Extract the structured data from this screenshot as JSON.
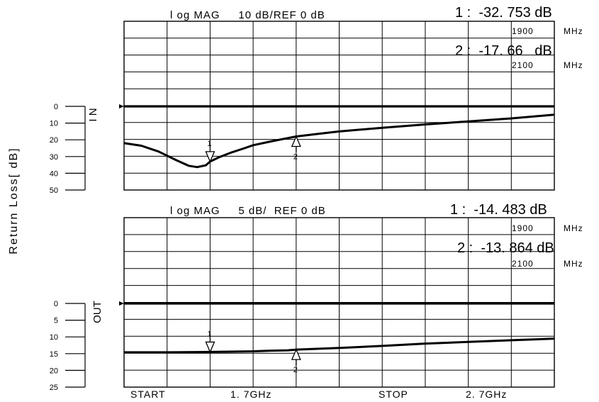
{
  "ylabel": "Return Loss[ dB]",
  "bottom_labels": {
    "start": "START",
    "start_freq": "1. 7GHz",
    "stop": "STOP",
    "stop_freq": "2. 7GHz"
  },
  "chart_data": [
    {
      "type": "line",
      "channel_label": "I N",
      "header": "l og MAG     10 dB/REF 0 dB",
      "marker1": {
        "label": "1 :  -32. 753 dB",
        "freq": "1900",
        "unit": "MHz",
        "id": "1"
      },
      "marker2": {
        "label": "2 :  -17. 66   dB",
        "freq": "2100",
        "unit": "MHz",
        "id": "2"
      },
      "xlim": [
        1.7,
        2.7
      ],
      "ylim": [
        0,
        50
      ],
      "yticks": [
        "0",
        "10",
        "20",
        "30",
        "40",
        "50"
      ],
      "grid": true,
      "x": [
        1.7,
        1.74,
        1.78,
        1.82,
        1.85,
        1.87,
        1.89,
        1.9,
        1.92,
        1.95,
        1.98,
        2.0,
        2.04,
        2.08,
        2.1,
        2.15,
        2.2,
        2.3,
        2.4,
        2.5,
        2.6,
        2.7
      ],
      "y": [
        22.0,
        23.5,
        27.0,
        32.0,
        35.5,
        36.3,
        35.2,
        33.0,
        30.5,
        27.5,
        25.0,
        23.2,
        21.0,
        19.0,
        18.0,
        16.5,
        15.0,
        12.8,
        10.8,
        9.0,
        7.2,
        5.0
      ]
    },
    {
      "type": "line",
      "channel_label": "OUT",
      "header": "l og MAG     5 dB/  REF 0 dB",
      "marker1": {
        "label": "1 :  -14. 483 dB",
        "freq": "1900",
        "unit": "MHz",
        "id": "1"
      },
      "marker2": {
        "label": "2 :  -13. 864 dB",
        "freq": "2100",
        "unit": "MHz",
        "id": "2"
      },
      "xlim": [
        1.7,
        2.7
      ],
      "ylim": [
        0,
        25
      ],
      "yticks": [
        "0",
        "5",
        "10",
        "15",
        "20",
        "25"
      ],
      "grid": true,
      "x": [
        1.7,
        1.8,
        1.9,
        2.0,
        2.04,
        2.08,
        2.1,
        2.2,
        2.3,
        2.4,
        2.5,
        2.6,
        2.7
      ],
      "y": [
        14.6,
        14.6,
        14.5,
        14.3,
        14.1,
        14.0,
        13.8,
        13.3,
        12.7,
        12.0,
        11.5,
        11.0,
        10.5
      ]
    }
  ]
}
